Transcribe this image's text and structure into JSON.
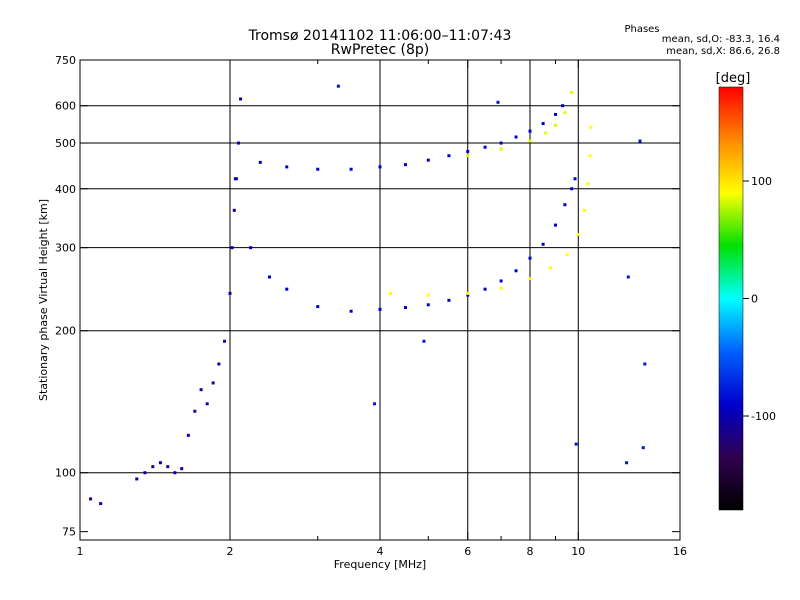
{
  "chart_data": {
    "type": "scatter",
    "title": "Tromsø 20141102 11:06:00–11:07:43",
    "subtitle": "RwPretec (8p)",
    "xlabel": "Frequency [MHz]",
    "ylabel": "Stationary phase Virtual Height [km]",
    "x_scale": "log",
    "y_scale": "log",
    "xlim": [
      1,
      16
    ],
    "ylim": [
      72,
      750
    ],
    "x_ticks": [
      1,
      2,
      4,
      6,
      8,
      10,
      16
    ],
    "x_tick_labels": [
      "1",
      "2",
      "4",
      "6",
      "8",
      "10",
      "16"
    ],
    "x_minor_ticks": [
      3,
      5,
      7,
      9
    ],
    "y_ticks": [
      75,
      100,
      200,
      300,
      400,
      500,
      600,
      750
    ],
    "y_tick_labels": [
      "75",
      "100",
      "200",
      "300",
      "400",
      "500",
      "600",
      "750"
    ],
    "grid_x": [
      2,
      4,
      6,
      8,
      10
    ],
    "grid_y": [
      100,
      200,
      300,
      400,
      500,
      600
    ],
    "stats": {
      "heading": "Phases",
      "line_o": "mean, sd,O: -83.3, 16.4",
      "line_x": "mean, sd,X:  86.6, 26.8"
    },
    "colorbar": {
      "label": "[deg]",
      "range": [
        -180,
        180
      ],
      "ticks": [
        100,
        0,
        -100
      ],
      "tick_labels": [
        "100",
        "0",
        "-100"
      ],
      "colors": [
        "#ff0000",
        "#ff8800",
        "#ffff00",
        "#00e000",
        "#00ffff",
        "#0060ff",
        "#0000cc",
        "#300050",
        "#000000"
      ]
    },
    "series": [
      {
        "trace": "o_f_low",
        "x": [
          2.05,
          2.2,
          2.4,
          2.6,
          3.0,
          3.5,
          4.0,
          4.5,
          5.0,
          5.5,
          6.0,
          6.5,
          7.0,
          7.5,
          8.0,
          8.5,
          9.0,
          9.4,
          9.7,
          9.85
        ],
        "y": [
          420,
          300,
          260,
          245,
          225,
          220,
          222,
          224,
          227,
          232,
          238,
          245,
          255,
          268,
          285,
          305,
          335,
          370,
          400,
          420
        ],
        "phase": -90
      },
      {
        "trace": "x_f_low",
        "x": [
          4.2,
          5.0,
          6.0,
          7.0,
          8.0,
          8.8,
          9.5,
          10.0,
          10.3,
          10.45,
          10.55,
          10.6
        ],
        "y": [
          240,
          238,
          240,
          246,
          258,
          272,
          290,
          320,
          360,
          410,
          470,
          540
        ],
        "phase": 90
      },
      {
        "trace": "o_f_high",
        "x": [
          2.3,
          2.6,
          3.0,
          3.5,
          4.0,
          4.5,
          5.0,
          5.5,
          6.0,
          6.5,
          7.0,
          7.5,
          8.0,
          8.5,
          9.0,
          9.3
        ],
        "y": [
          455,
          445,
          440,
          440,
          445,
          450,
          460,
          470,
          480,
          490,
          500,
          515,
          530,
          550,
          575,
          600
        ],
        "phase": -90
      },
      {
        "trace": "x_f_high",
        "x": [
          6.0,
          7.0,
          8.0,
          8.6,
          9.0,
          9.4,
          9.7
        ],
        "y": [
          470,
          485,
          505,
          525,
          545,
          580,
          640
        ],
        "phase": 85
      },
      {
        "trace": "spread_column",
        "x": [
          1.8,
          1.85,
          1.9,
          1.95,
          2.0,
          2.02,
          2.04,
          2.06,
          2.08,
          2.1
        ],
        "y": [
          140,
          155,
          170,
          190,
          240,
          300,
          360,
          420,
          500,
          620
        ],
        "phase": -100
      },
      {
        "trace": "low_echoes",
        "x": [
          1.05,
          1.1,
          1.3,
          1.35,
          1.4,
          1.45,
          1.5,
          1.55,
          1.6,
          1.65,
          1.7,
          1.75
        ],
        "y": [
          88,
          86,
          97,
          100,
          103,
          105,
          103,
          100,
          102,
          120,
          135,
          150
        ],
        "phase": -100
      },
      {
        "trace": "scattered",
        "x": [
          3.3,
          3.9,
          4.9,
          6.9,
          9.9,
          12.5,
          13.5,
          13.3,
          13.6,
          12.6
        ],
        "y": [
          660,
          140,
          190,
          610,
          115,
          105,
          113,
          505,
          170,
          260
        ],
        "phase": -80
      }
    ]
  }
}
